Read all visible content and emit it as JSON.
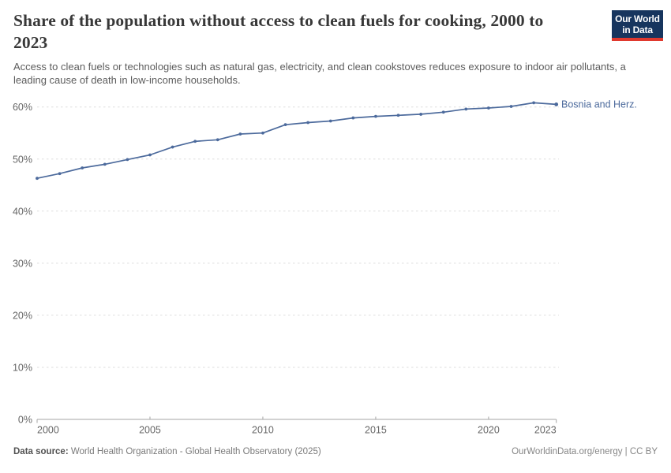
{
  "header": {
    "title": "Share of the population without access to clean fuels for cooking, 2000 to 2023",
    "subtitle": "Access to clean fuels or technologies such as natural gas, electricity, and clean cookstoves reduces exposure to indoor air pollutants, a leading cause of death in low-income households.",
    "logo": {
      "line1": "Our World",
      "line2": "in Data",
      "bg_color": "#17355e",
      "accent_color": "#e0392e"
    }
  },
  "chart_data": {
    "type": "line",
    "title": "Share of the population without access to clean fuels for cooking, 2000 to 2023",
    "x": [
      2000,
      2001,
      2002,
      2003,
      2004,
      2005,
      2006,
      2007,
      2008,
      2009,
      2010,
      2011,
      2012,
      2013,
      2014,
      2015,
      2016,
      2017,
      2018,
      2019,
      2020,
      2021,
      2022,
      2023
    ],
    "series": [
      {
        "name": "Bosnia and Herz.",
        "color": "#4C6A9C",
        "values": [
          46.3,
          47.2,
          48.3,
          49.0,
          49.9,
          50.8,
          52.3,
          53.4,
          53.7,
          54.8,
          55.0,
          56.6,
          57.0,
          57.3,
          57.9,
          58.2,
          58.4,
          58.6,
          59.0,
          59.6,
          59.8,
          60.1,
          60.8,
          60.5
        ]
      }
    ],
    "xlabel": "",
    "ylabel": "",
    "ylim": [
      0,
      60
    ],
    "yticks": [
      0,
      10,
      20,
      30,
      40,
      50,
      60
    ],
    "ytick_suffix": "%",
    "xticks": [
      2000,
      2005,
      2010,
      2015,
      2020,
      2023
    ],
    "grid": "horizontal-dashed",
    "legend_position": "end-of-line-label",
    "colors": {
      "grid": "#dddddd",
      "axis": "#a5a5a5",
      "tick_label": "#666666"
    }
  },
  "footer": {
    "datasource_label": "Data source:",
    "datasource_value": " World Health Organization - Global Health Observatory (2025)",
    "credit": "OurWorldinData.org/energy | CC BY"
  }
}
